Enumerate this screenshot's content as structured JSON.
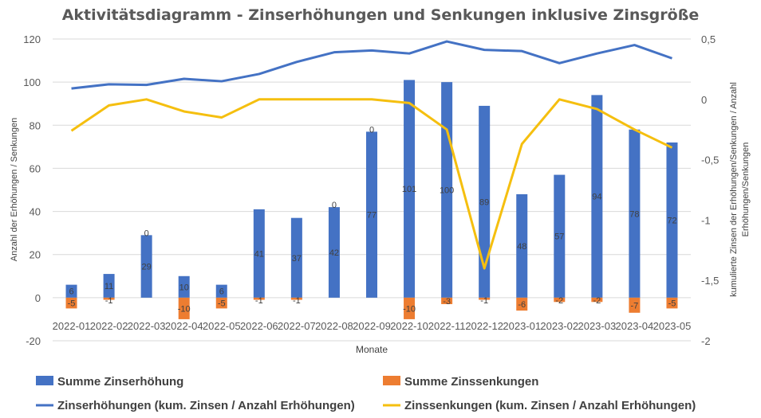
{
  "chart_data": {
    "type": "bar",
    "title": "Aktivitätsdiagramm - Zinserhöhungen und Senkungen inklusive Zinsgröße",
    "xlabel": "Monate",
    "ylabel": "Anzahl der Erhöhungen / Senkungen",
    "y2label_line1": "kumulierte Zinsen der Erhöhungen/Senkungen / Anzahl",
    "y2label_line2": "Erhöhungen/Senkungen",
    "ylim": [
      -20,
      120
    ],
    "y2lim": [
      -2,
      0.5
    ],
    "yticks": [
      "-20",
      "0",
      "20",
      "40",
      "60",
      "80",
      "100",
      "120"
    ],
    "y2ticks": [
      "-2",
      "-1,5",
      "-1",
      "-0,5",
      "0",
      "0,5"
    ],
    "categories": [
      "2022-01",
      "2022-02",
      "2022-03",
      "2022-04",
      "2022-05",
      "2022-06",
      "2022-07",
      "2022-08",
      "2022-09",
      "2022-10",
      "2022-11",
      "2022-12",
      "2023-01",
      "2023-02",
      "2023-03",
      "2023-04",
      "2023-05"
    ],
    "series": [
      {
        "name": "Summe Zinserhöhung",
        "kind": "bar",
        "axis": "primary",
        "color": "#4472C4",
        "values": [
          6,
          11,
          29,
          10,
          6,
          41,
          37,
          42,
          77,
          101,
          100,
          89,
          48,
          57,
          94,
          78,
          72
        ],
        "labels": [
          "6",
          "11",
          "29",
          "10",
          "6",
          "41",
          "37",
          "42",
          "77",
          "101",
          "100",
          "89",
          "48",
          "57",
          "94",
          "78",
          "72"
        ]
      },
      {
        "name": "Summe Zinssenkungen",
        "kind": "bar",
        "axis": "primary",
        "color": "#ED7D31",
        "values": [
          -5,
          -1,
          0,
          -10,
          -5,
          -1,
          -1,
          0,
          0,
          -10,
          -3,
          -1,
          -6,
          -2,
          -2,
          -7,
          -5
        ],
        "labels": [
          "-5",
          "-1",
          "0",
          "-10",
          "-5",
          "-1",
          "-1",
          "0",
          "0",
          "-10",
          "-3",
          "-1",
          "-6",
          "-2",
          "-2",
          "-7",
          "-5"
        ]
      },
      {
        "name": "Zinserhöhungen (kum. Zinsen / Anzahl Erhöhungen)",
        "kind": "line",
        "axis": "secondary",
        "color": "#4472C4",
        "values": [
          0.09,
          0.125,
          0.12,
          0.17,
          0.15,
          0.21,
          0.31,
          0.39,
          0.405,
          0.38,
          0.48,
          0.41,
          0.4,
          0.3,
          0.38,
          0.45,
          0.34
        ]
      },
      {
        "name": "Zinssenkungen (kum. Zinsen / Anzahl Erhöhungen)",
        "kind": "line",
        "axis": "secondary",
        "color": "#F5BF0F",
        "values": [
          -0.26,
          -0.05,
          0.0,
          -0.1,
          -0.15,
          0.0,
          0.0,
          0.0,
          0.0,
          -0.03,
          -0.25,
          -1.4,
          -0.37,
          0.0,
          -0.08,
          -0.25,
          -0.4
        ]
      }
    ],
    "legend": {
      "position": "bottom"
    },
    "grid": true
  }
}
